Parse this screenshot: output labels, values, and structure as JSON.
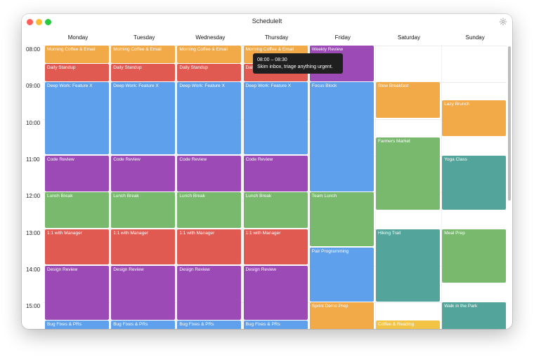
{
  "app": {
    "title": "ScheduleIt"
  },
  "days": [
    "Monday",
    "Tuesday",
    "Wednesday",
    "Thursday",
    "Friday",
    "Saturday",
    "Sunday"
  ],
  "hours": [
    "08:00",
    "09:00",
    "10:00",
    "11:00",
    "12:00",
    "13:00",
    "14:00",
    "15:00"
  ],
  "colors": {
    "orange": "#f2a947",
    "red": "#e05a52",
    "blue": "#5ea0ec",
    "purple": "#9b4ab6",
    "green": "#79b96e",
    "teal": "#53a59b",
    "yellow": "#f3c343"
  },
  "events": [
    {
      "title": "Morning Coffee & Email",
      "day": 0,
      "start": "08:00",
      "end": "08:30",
      "color": "orange"
    },
    {
      "title": "Daily Standup",
      "day": 0,
      "start": "08:30",
      "end": "09:00",
      "color": "red"
    },
    {
      "title": "Deep Work: Feature X",
      "day": 0,
      "start": "09:00",
      "end": "11:00",
      "color": "blue"
    },
    {
      "title": "Code Review",
      "day": 0,
      "start": "11:00",
      "end": "12:00",
      "color": "purple"
    },
    {
      "title": "Lunch Break",
      "day": 0,
      "start": "12:00",
      "end": "13:00",
      "color": "green"
    },
    {
      "title": "1:1 with Manager",
      "day": 0,
      "start": "13:00",
      "end": "14:00",
      "color": "red"
    },
    {
      "title": "Design Review",
      "day": 0,
      "start": "14:00",
      "end": "15:30",
      "color": "purple"
    },
    {
      "title": "Bug Fixes & PRs",
      "day": 0,
      "start": "15:30",
      "end": "16:00",
      "color": "blue"
    },
    {
      "title": "Morning Coffee & Email",
      "day": 1,
      "start": "08:00",
      "end": "08:30",
      "color": "orange"
    },
    {
      "title": "Daily Standup",
      "day": 1,
      "start": "08:30",
      "end": "09:00",
      "color": "red"
    },
    {
      "title": "Deep Work: Feature X",
      "day": 1,
      "start": "09:00",
      "end": "11:00",
      "color": "blue"
    },
    {
      "title": "Code Review",
      "day": 1,
      "start": "11:00",
      "end": "12:00",
      "color": "purple"
    },
    {
      "title": "Lunch Break",
      "day": 1,
      "start": "12:00",
      "end": "13:00",
      "color": "green"
    },
    {
      "title": "1:1 with Manager",
      "day": 1,
      "start": "13:00",
      "end": "14:00",
      "color": "red"
    },
    {
      "title": "Design Review",
      "day": 1,
      "start": "14:00",
      "end": "15:30",
      "color": "purple"
    },
    {
      "title": "Bug Fixes & PRs",
      "day": 1,
      "start": "15:30",
      "end": "16:00",
      "color": "blue"
    },
    {
      "title": "Morning Coffee & Email",
      "day": 2,
      "start": "08:00",
      "end": "08:30",
      "color": "orange"
    },
    {
      "title": "Daily Standup",
      "day": 2,
      "start": "08:30",
      "end": "09:00",
      "color": "red"
    },
    {
      "title": "Deep Work: Feature X",
      "day": 2,
      "start": "09:00",
      "end": "11:00",
      "color": "blue"
    },
    {
      "title": "Code Review",
      "day": 2,
      "start": "11:00",
      "end": "12:00",
      "color": "purple"
    },
    {
      "title": "Lunch Break",
      "day": 2,
      "start": "12:00",
      "end": "13:00",
      "color": "green"
    },
    {
      "title": "1:1 with Manager",
      "day": 2,
      "start": "13:00",
      "end": "14:00",
      "color": "red"
    },
    {
      "title": "Design Review",
      "day": 2,
      "start": "14:00",
      "end": "15:30",
      "color": "purple"
    },
    {
      "title": "Bug Fixes & PRs",
      "day": 2,
      "start": "15:30",
      "end": "16:00",
      "color": "blue"
    },
    {
      "title": "Morning Coffee & Email",
      "day": 3,
      "start": "08:00",
      "end": "08:30",
      "color": "orange"
    },
    {
      "title": "Daily Standup",
      "day": 3,
      "start": "08:30",
      "end": "09:00",
      "color": "red"
    },
    {
      "title": "Deep Work: Feature X",
      "day": 3,
      "start": "09:00",
      "end": "11:00",
      "color": "blue"
    },
    {
      "title": "Code Review",
      "day": 3,
      "start": "11:00",
      "end": "12:00",
      "color": "purple"
    },
    {
      "title": "Lunch Break",
      "day": 3,
      "start": "12:00",
      "end": "13:00",
      "color": "green"
    },
    {
      "title": "1:1 with Manager",
      "day": 3,
      "start": "13:00",
      "end": "14:00",
      "color": "red"
    },
    {
      "title": "Design Review",
      "day": 3,
      "start": "14:00",
      "end": "15:30",
      "color": "purple"
    },
    {
      "title": "Bug Fixes & PRs",
      "day": 3,
      "start": "15:30",
      "end": "16:00",
      "color": "blue"
    },
    {
      "title": "Weekly Review",
      "day": 4,
      "start": "08:00",
      "end": "09:00",
      "color": "purple"
    },
    {
      "title": "Focus Block",
      "day": 4,
      "start": "09:00",
      "end": "12:00",
      "color": "blue"
    },
    {
      "title": "Team Lunch",
      "day": 4,
      "start": "12:00",
      "end": "13:30",
      "color": "green"
    },
    {
      "title": "Pair Programming",
      "day": 4,
      "start": "13:30",
      "end": "15:00",
      "color": "blue"
    },
    {
      "title": "Sprint Demo Prep",
      "day": 4,
      "start": "15:00",
      "end": "16:00",
      "color": "orange"
    },
    {
      "title": "Slow Breakfast",
      "day": 5,
      "start": "09:00",
      "end": "10:00",
      "color": "orange"
    },
    {
      "title": "Farmers Market",
      "day": 5,
      "start": "10:30",
      "end": "12:30",
      "color": "green"
    },
    {
      "title": "Hiking Trail",
      "day": 5,
      "start": "13:00",
      "end": "15:00",
      "color": "teal"
    },
    {
      "title": "Coffee & Reading",
      "day": 5,
      "start": "15:30",
      "end": "16:30",
      "color": "yellow"
    },
    {
      "title": "Lazy Brunch",
      "day": 6,
      "start": "09:30",
      "end": "10:30",
      "color": "orange"
    },
    {
      "title": "Yoga Class",
      "day": 6,
      "start": "11:00",
      "end": "12:30",
      "color": "teal"
    },
    {
      "title": "Meal Prep",
      "day": 6,
      "start": "13:00",
      "end": "14:30",
      "color": "green"
    },
    {
      "title": "Walk in the Park",
      "day": 6,
      "start": "15:00",
      "end": "16:00",
      "color": "teal"
    }
  ],
  "tooltip": {
    "time": "08:00 – 08:30",
    "note": "Skim inbox, triage anything urgent."
  }
}
